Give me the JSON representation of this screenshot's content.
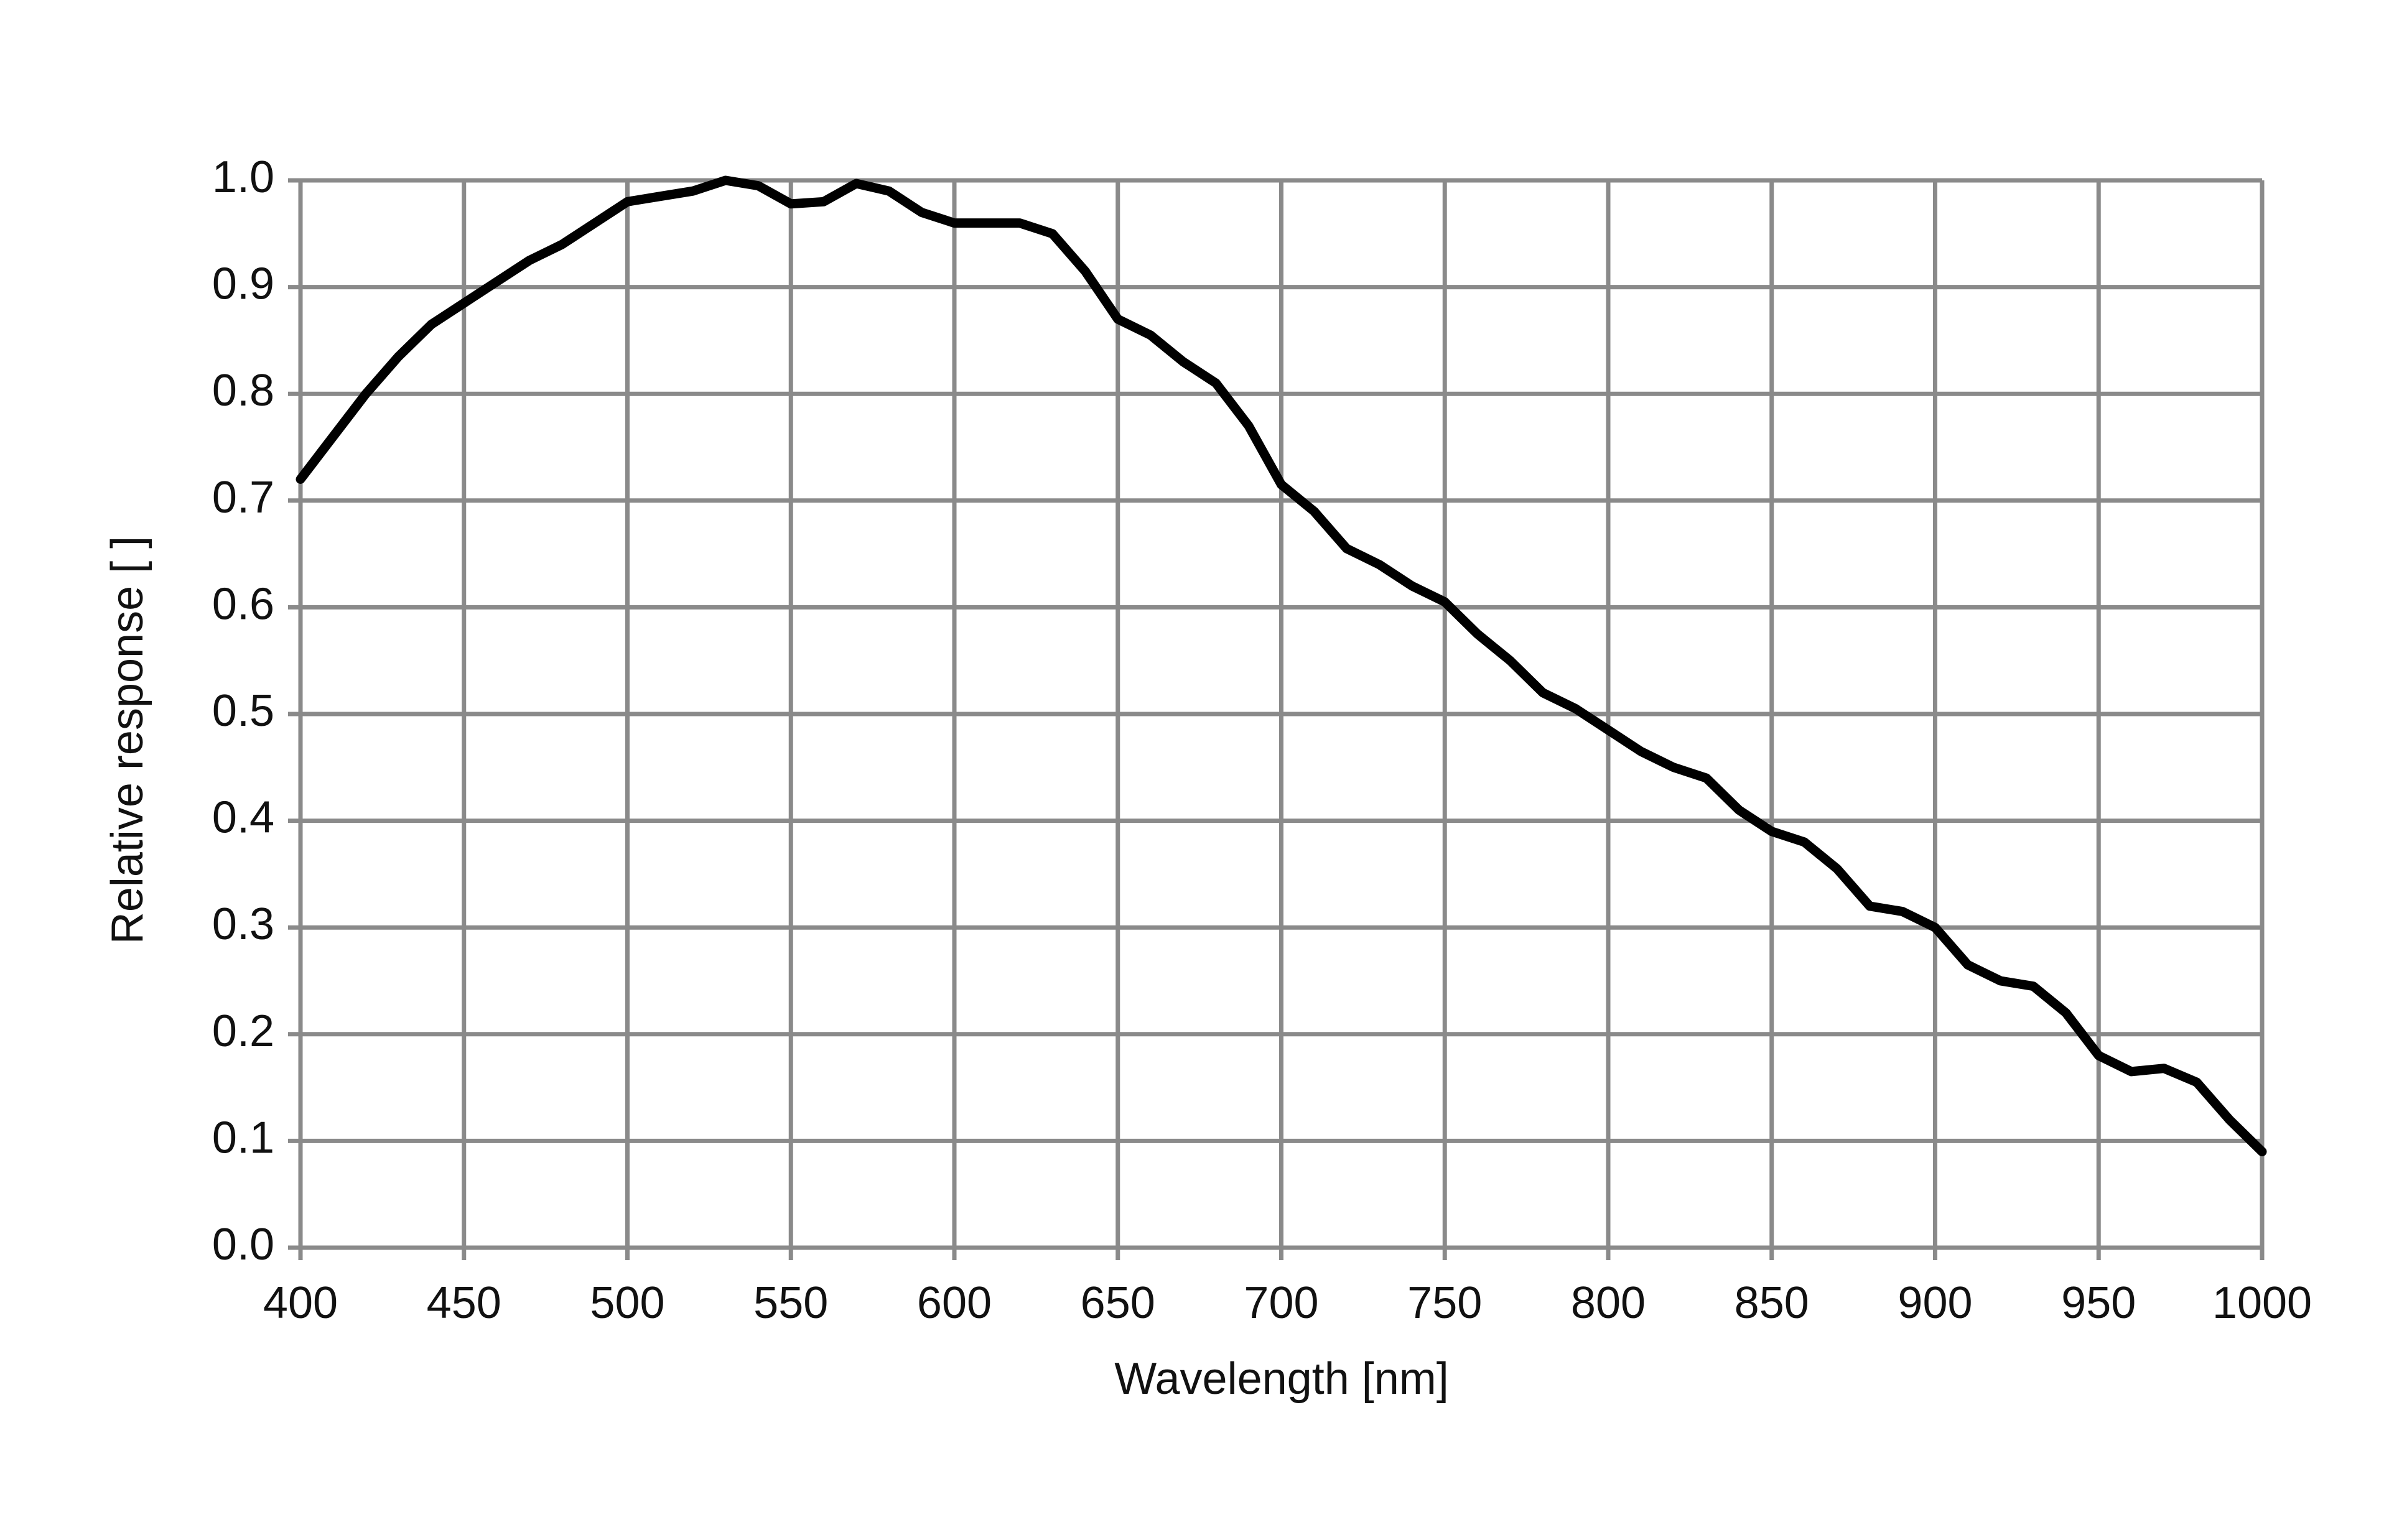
{
  "chart_data": {
    "type": "line",
    "x_label": "Wavelength [nm]",
    "y_label": "Relative response [ ]",
    "x": [
      400,
      410,
      420,
      430,
      440,
      450,
      460,
      470,
      480,
      490,
      500,
      510,
      520,
      530,
      540,
      550,
      560,
      570,
      580,
      590,
      600,
      610,
      620,
      630,
      640,
      650,
      660,
      670,
      680,
      690,
      700,
      710,
      720,
      730,
      740,
      750,
      760,
      770,
      780,
      790,
      800,
      810,
      820,
      830,
      840,
      850,
      860,
      870,
      880,
      890,
      900,
      910,
      920,
      930,
      940,
      950,
      960,
      970,
      980,
      990,
      1000
    ],
    "series": [
      {
        "name": "Relative response",
        "color": "#000000",
        "values": [
          0.72,
          0.76,
          0.8,
          0.835,
          0.865,
          0.885,
          0.905,
          0.925,
          0.94,
          0.96,
          0.98,
          0.985,
          0.99,
          1.0,
          0.995,
          0.978,
          0.98,
          0.997,
          0.99,
          0.97,
          0.96,
          0.96,
          0.96,
          0.95,
          0.915,
          0.87,
          0.855,
          0.83,
          0.81,
          0.77,
          0.715,
          0.69,
          0.655,
          0.64,
          0.62,
          0.605,
          0.575,
          0.55,
          0.52,
          0.505,
          0.485,
          0.465,
          0.45,
          0.44,
          0.41,
          0.39,
          0.38,
          0.355,
          0.32,
          0.315,
          0.3,
          0.265,
          0.25,
          0.245,
          0.22,
          0.18,
          0.165,
          0.168,
          0.155,
          0.12,
          0.09
        ]
      }
    ],
    "xlim": [
      400,
      1000
    ],
    "xticks": [
      400,
      450,
      500,
      550,
      600,
      650,
      700,
      750,
      800,
      850,
      900,
      950,
      1000
    ],
    "ylim": [
      0,
      1
    ],
    "yticks": [
      {
        "value": 0,
        "label": "0.0"
      },
      0.1,
      0.2,
      0.3,
      0.4,
      0.5,
      0.6,
      0.7,
      0.8,
      0.9,
      {
        "value": 1,
        "label": "1.0"
      }
    ],
    "grid": true
  }
}
